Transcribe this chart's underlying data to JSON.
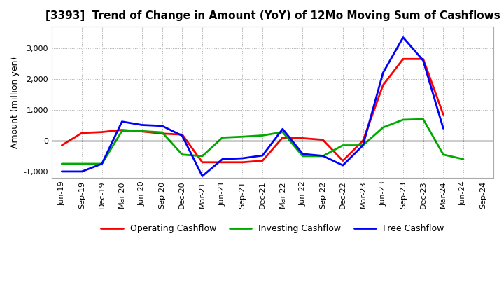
{
  "title": "[3393]  Trend of Change in Amount (YoY) of 12Mo Moving Sum of Cashflows",
  "ylabel": "Amount (million yen)",
  "x_labels": [
    "Jun-19",
    "Sep-19",
    "Dec-19",
    "Mar-20",
    "Jun-20",
    "Sep-20",
    "Dec-20",
    "Mar-21",
    "Jun-21",
    "Sep-21",
    "Dec-21",
    "Mar-22",
    "Jun-22",
    "Sep-22",
    "Dec-22",
    "Mar-23",
    "Jun-23",
    "Sep-23",
    "Dec-23",
    "Mar-24",
    "Jun-24",
    "Sep-24"
  ],
  "operating": [
    -150,
    250,
    280,
    350,
    300,
    230,
    200,
    -700,
    -700,
    -700,
    -650,
    100,
    80,
    30,
    -650,
    0,
    1800,
    2650,
    2650,
    850,
    null,
    null
  ],
  "investing": [
    -750,
    -750,
    -750,
    320,
    310,
    270,
    -450,
    -500,
    100,
    130,
    170,
    280,
    -500,
    -500,
    -150,
    -150,
    430,
    680,
    700,
    -450,
    -600,
    null
  ],
  "free": [
    -1000,
    -1000,
    -750,
    620,
    510,
    480,
    160,
    -1150,
    -600,
    -570,
    -480,
    380,
    -430,
    -490,
    -800,
    -150,
    2200,
    3350,
    2600,
    400,
    null,
    null
  ],
  "operating_color": "#ff0000",
  "investing_color": "#00aa00",
  "free_color": "#0000ff",
  "ylim": [
    -1200,
    3700
  ],
  "yticks": [
    -1000,
    0,
    1000,
    2000,
    3000
  ],
  "grid_color": "#aaaaaa",
  "background_color": "#ffffff",
  "linewidth": 2.0
}
